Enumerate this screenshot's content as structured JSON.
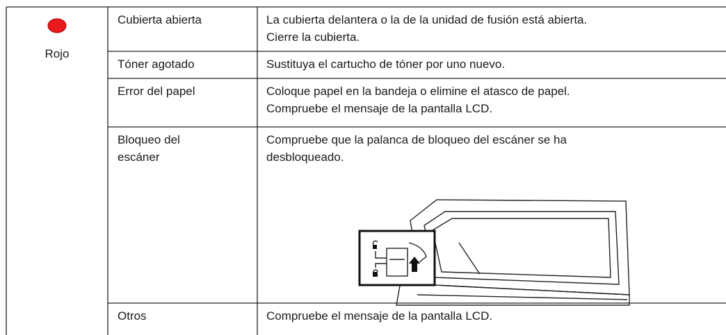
{
  "status": {
    "color_label": "Rojo"
  },
  "table": {
    "rows": [
      {
        "label": [
          "Cubierta abierta"
        ],
        "description": [
          "La cubierta delantera o la de la unidad de fusión está abierta.",
          "Cierre la cubierta."
        ]
      },
      {
        "label": [
          "Tóner agotado"
        ],
        "description": [
          "Sustituya el cartucho de tóner por uno nuevo."
        ]
      },
      {
        "label": [
          "Error del papel"
        ],
        "description": [
          "Coloque papel en la bandeja o elimine el atasco de papel.",
          "Compruebe el mensaje de la pantalla LCD."
        ]
      },
      {
        "label": [
          "Bloqueo del",
          "escáner"
        ],
        "description": [
          "Compruebe que la palanca de bloqueo del escáner se ha",
          "desbloqueado."
        ]
      },
      {
        "label": [
          "Otros"
        ],
        "description": [
          "Compruebe el mensaje de la pantalla LCD."
        ]
      }
    ]
  }
}
